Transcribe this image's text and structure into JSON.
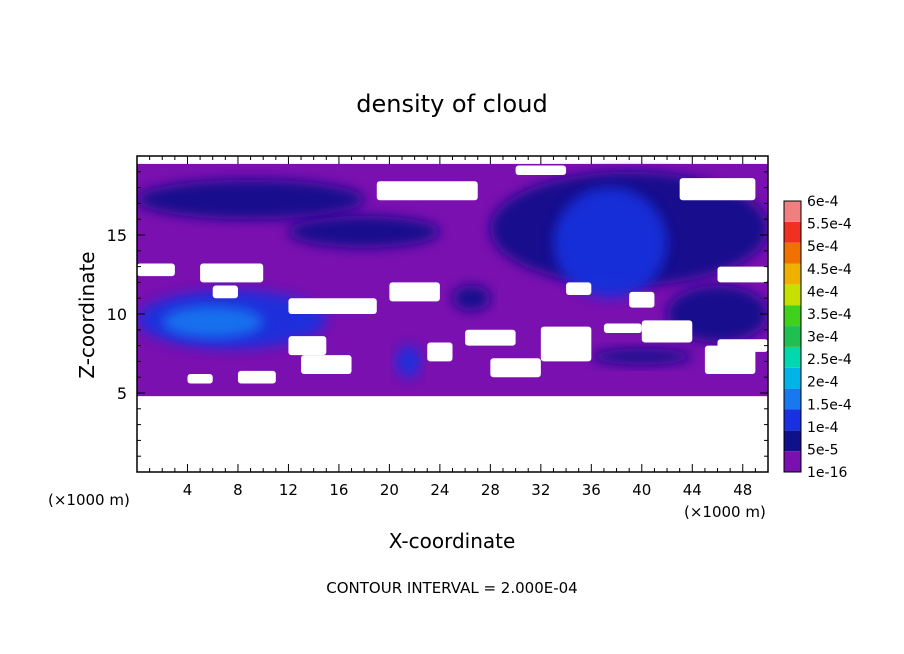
{
  "chart_data": {
    "type": "heatmap",
    "title": "density of cloud",
    "xlabel": "X-coordinate",
    "ylabel": "Z-coordinate",
    "x_unit_left": "(×1000 m)",
    "x_unit_right": "(×1000 m)",
    "footer": "CONTOUR INTERVAL = 2.000E-04",
    "xlim": [
      0,
      50
    ],
    "ylim": [
      0,
      20
    ],
    "x_ticks": [
      4,
      8,
      12,
      16,
      20,
      24,
      28,
      32,
      36,
      40,
      44,
      48
    ],
    "y_ticks": [
      5,
      10,
      15
    ],
    "colorbar": {
      "labels": [
        "1e-16",
        "5e-5",
        "1e-4",
        "1.5e-4",
        "2e-4",
        "2.5e-4",
        "3e-4",
        "3.5e-4",
        "4e-4",
        "4.5e-4",
        "5e-4",
        "5.5e-4",
        "6e-4"
      ],
      "colors": [
        "#7a10b0",
        "#10108a",
        "#1830e0",
        "#1878f0",
        "#00b4e8",
        "#00d8b0",
        "#20c050",
        "#40d020",
        "#c8e000",
        "#f0b000",
        "#f07000",
        "#f03020",
        "#f08080"
      ]
    },
    "field": {
      "description_levels": [
        "none",
        "1e-16",
        "5e-5",
        "1e-4",
        "1.5e-4"
      ],
      "regions": [
        {
          "level": "1e-16",
          "x": [
            0,
            50
          ],
          "z": [
            4.8,
            19.5
          ]
        },
        {
          "level": "5e-5",
          "x": [
            0,
            18
          ],
          "z": [
            16,
            18.5
          ]
        },
        {
          "level": "5e-5",
          "x": [
            12,
            24
          ],
          "z": [
            14.2,
            16.2
          ]
        },
        {
          "level": "5e-5",
          "x": [
            28,
            50
          ],
          "z": [
            11.8,
            19
          ]
        },
        {
          "level": "1e-4",
          "x": [
            33,
            42
          ],
          "z": [
            11,
            18
          ]
        },
        {
          "level": "1e-4",
          "x": [
            0,
            15
          ],
          "z": [
            7.8,
            11.5
          ]
        },
        {
          "level": "1.5e-4",
          "x": [
            2,
            10
          ],
          "z": [
            8.5,
            10.5
          ]
        },
        {
          "level": "5e-5",
          "x": [
            36,
            44
          ],
          "z": [
            6.8,
            7.8
          ]
        },
        {
          "level": "1e-4",
          "x": [
            20.5,
            22.5
          ],
          "z": [
            6,
            8
          ]
        },
        {
          "level": "5e-5",
          "x": [
            42,
            50
          ],
          "z": [
            8.2,
            11.8
          ]
        },
        {
          "level": "5e-5",
          "x": [
            25,
            28
          ],
          "z": [
            10.2,
            11.8
          ]
        }
      ]
    }
  },
  "colors": {
    "background": "#ffffff",
    "frame": "#000000",
    "missing": "#ffffff"
  }
}
